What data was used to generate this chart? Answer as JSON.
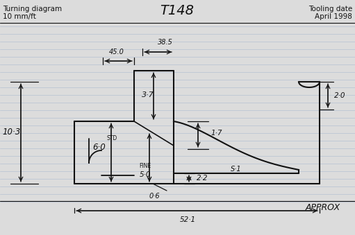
{
  "title": "T148",
  "subtitle_left_1": "Turning diagram",
  "subtitle_left_2": "10 mm/ft",
  "subtitle_right_1": "Tooling date",
  "subtitle_right_2": "April 1998",
  "approx_label": "APPROX",
  "bg_color": "#dcdcdc",
  "line_color": "#111111",
  "ruled_line_color": "#aabbd0",
  "annotations": {
    "45_0": "45.0",
    "38_5": "38.5",
    "3_7": "3·7",
    "1_7": "1·7",
    "2_0": "2·0",
    "10_3": "10·3",
    "6_0": "6·0",
    "std": "STD",
    "fine": "FINE",
    "5_0": "5·0",
    "0_6": "0·6",
    "2_2": "2·2",
    "s_1": "S·1",
    "52_1": "52·1"
  },
  "figsize": [
    5.11,
    3.39
  ],
  "dpi": 100
}
